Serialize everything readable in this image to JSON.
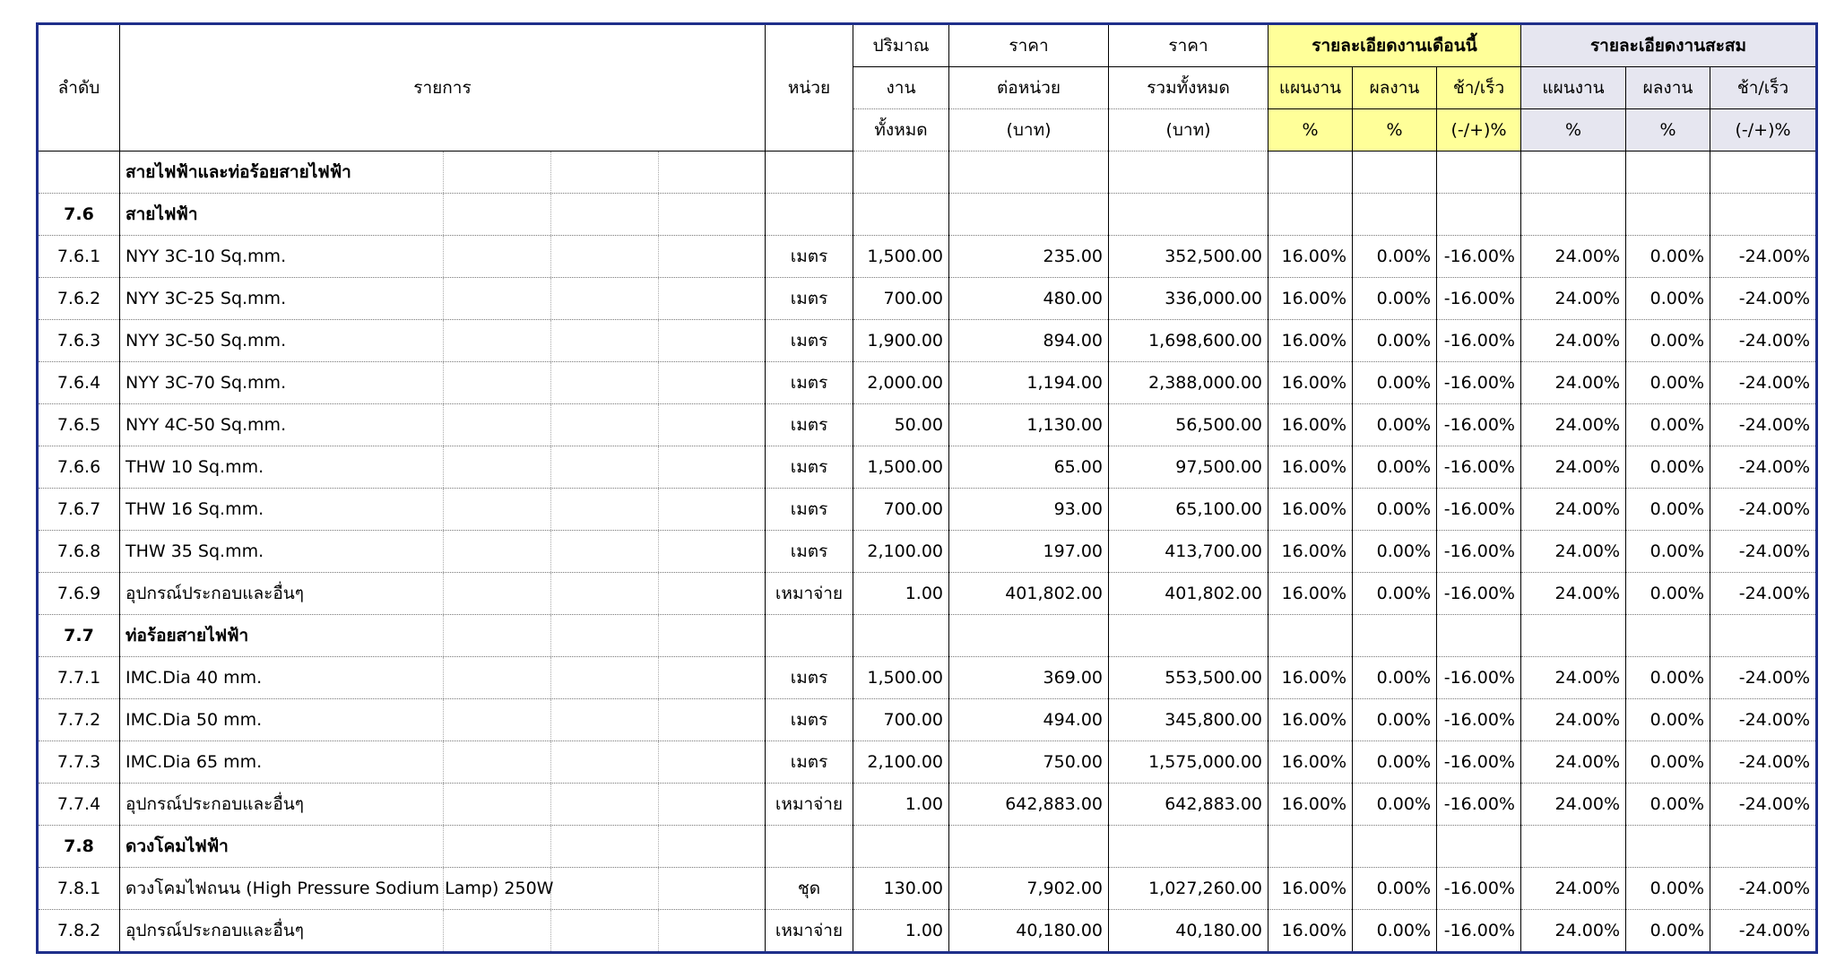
{
  "header": {
    "seq": "ลำดับ",
    "item": "รายการ",
    "unit": "หน่วย",
    "qty": [
      "ปริมาณ",
      "งาน",
      "ทั้งหมด"
    ],
    "unit_price": [
      "ราคา",
      "ต่อหน่วย",
      "(บาท)"
    ],
    "total_price": [
      "ราคา",
      "รวมทั้งหมด",
      "(บาท)"
    ],
    "this_month": "รายละเอียดงานเดือนนี้",
    "cumulative": "รายละเอียดงานสะสม",
    "plan": "แผนงาน",
    "result": "ผลงาน",
    "diff": "ช้า/เร็ว",
    "pct": "%",
    "diff_pct": "(-/+)%"
  },
  "rows": [
    {
      "type": "group",
      "seq": "",
      "name": "สายไฟฟ้าและท่อร้อยสายไฟฟ้า"
    },
    {
      "type": "group",
      "seq": "7.6",
      "name": "สายไฟฟ้า"
    },
    {
      "type": "item",
      "seq": "7.6.1",
      "name": "NYY 3C-10 Sq.mm.",
      "unit": "เมตร",
      "qty": "1,500.00",
      "price": "235.00",
      "total": "352,500.00",
      "m_plan": "16.00%",
      "m_res": "0.00%",
      "m_diff": "-16.00%",
      "c_plan": "24.00%",
      "c_res": "0.00%",
      "c_diff": "-24.00%"
    },
    {
      "type": "item",
      "seq": "7.6.2",
      "name": "NYY 3C-25 Sq.mm.",
      "unit": "เมตร",
      "qty": "700.00",
      "price": "480.00",
      "total": "336,000.00",
      "m_plan": "16.00%",
      "m_res": "0.00%",
      "m_diff": "-16.00%",
      "c_plan": "24.00%",
      "c_res": "0.00%",
      "c_diff": "-24.00%"
    },
    {
      "type": "item",
      "seq": "7.6.3",
      "name": "NYY 3C-50 Sq.mm.",
      "unit": "เมตร",
      "qty": "1,900.00",
      "price": "894.00",
      "total": "1,698,600.00",
      "m_plan": "16.00%",
      "m_res": "0.00%",
      "m_diff": "-16.00%",
      "c_plan": "24.00%",
      "c_res": "0.00%",
      "c_diff": "-24.00%"
    },
    {
      "type": "item",
      "seq": "7.6.4",
      "name": "NYY 3C-70 Sq.mm.",
      "unit": "เมตร",
      "qty": "2,000.00",
      "price": "1,194.00",
      "total": "2,388,000.00",
      "m_plan": "16.00%",
      "m_res": "0.00%",
      "m_diff": "-16.00%",
      "c_plan": "24.00%",
      "c_res": "0.00%",
      "c_diff": "-24.00%"
    },
    {
      "type": "item",
      "seq": "7.6.5",
      "name": "NYY 4C-50 Sq.mm.",
      "unit": "เมตร",
      "qty": "50.00",
      "price": "1,130.00",
      "total": "56,500.00",
      "m_plan": "16.00%",
      "m_res": "0.00%",
      "m_diff": "-16.00%",
      "c_plan": "24.00%",
      "c_res": "0.00%",
      "c_diff": "-24.00%"
    },
    {
      "type": "item",
      "seq": "7.6.6",
      "name": "THW 10 Sq.mm.",
      "unit": "เมตร",
      "qty": "1,500.00",
      "price": "65.00",
      "total": "97,500.00",
      "m_plan": "16.00%",
      "m_res": "0.00%",
      "m_diff": "-16.00%",
      "c_plan": "24.00%",
      "c_res": "0.00%",
      "c_diff": "-24.00%"
    },
    {
      "type": "item",
      "seq": "7.6.7",
      "name": "THW 16 Sq.mm.",
      "unit": "เมตร",
      "qty": "700.00",
      "price": "93.00",
      "total": "65,100.00",
      "m_plan": "16.00%",
      "m_res": "0.00%",
      "m_diff": "-16.00%",
      "c_plan": "24.00%",
      "c_res": "0.00%",
      "c_diff": "-24.00%"
    },
    {
      "type": "item",
      "seq": "7.6.8",
      "name": "THW 35 Sq.mm.",
      "unit": "เมตร",
      "qty": "2,100.00",
      "price": "197.00",
      "total": "413,700.00",
      "m_plan": "16.00%",
      "m_res": "0.00%",
      "m_diff": "-16.00%",
      "c_plan": "24.00%",
      "c_res": "0.00%",
      "c_diff": "-24.00%"
    },
    {
      "type": "item",
      "seq": "7.6.9",
      "name": "อุปกรณ์ประกอบและอื่นๆ",
      "unit": "เหมาจ่าย",
      "qty": "1.00",
      "price": "401,802.00",
      "total": "401,802.00",
      "m_plan": "16.00%",
      "m_res": "0.00%",
      "m_diff": "-16.00%",
      "c_plan": "24.00%",
      "c_res": "0.00%",
      "c_diff": "-24.00%"
    },
    {
      "type": "group",
      "seq": "7.7",
      "name": "ท่อร้อยสายไฟฟ้า"
    },
    {
      "type": "item",
      "seq": "7.7.1",
      "name": "IMC.Dia 40 mm.",
      "unit": "เมตร",
      "qty": "1,500.00",
      "price": "369.00",
      "total": "553,500.00",
      "m_plan": "16.00%",
      "m_res": "0.00%",
      "m_diff": "-16.00%",
      "c_plan": "24.00%",
      "c_res": "0.00%",
      "c_diff": "-24.00%"
    },
    {
      "type": "item",
      "seq": "7.7.2",
      "name": "IMC.Dia 50 mm.",
      "unit": "เมตร",
      "qty": "700.00",
      "price": "494.00",
      "total": "345,800.00",
      "m_plan": "16.00%",
      "m_res": "0.00%",
      "m_diff": "-16.00%",
      "c_plan": "24.00%",
      "c_res": "0.00%",
      "c_diff": "-24.00%"
    },
    {
      "type": "item",
      "seq": "7.7.3",
      "name": "IMC.Dia 65 mm.",
      "unit": "เมตร",
      "qty": "2,100.00",
      "price": "750.00",
      "total": "1,575,000.00",
      "m_plan": "16.00%",
      "m_res": "0.00%",
      "m_diff": "-16.00%",
      "c_plan": "24.00%",
      "c_res": "0.00%",
      "c_diff": "-24.00%"
    },
    {
      "type": "item",
      "seq": "7.7.4",
      "name": "อุปกรณ์ประกอบและอื่นๆ",
      "unit": "เหมาจ่าย",
      "qty": "1.00",
      "price": "642,883.00",
      "total": "642,883.00",
      "m_plan": "16.00%",
      "m_res": "0.00%",
      "m_diff": "-16.00%",
      "c_plan": "24.00%",
      "c_res": "0.00%",
      "c_diff": "-24.00%"
    },
    {
      "type": "group",
      "seq": "7.8",
      "name": "ดวงโคมไฟฟ้า"
    },
    {
      "type": "item",
      "seq": "7.8.1",
      "name": "ดวงโคมไฟถนน (High Pressure Sodium Lamp) 250W",
      "unit": "ชุด",
      "qty": "130.00",
      "price": "7,902.00",
      "total": "1,027,260.00",
      "m_plan": "16.00%",
      "m_res": "0.00%",
      "m_diff": "-16.00%",
      "c_plan": "24.00%",
      "c_res": "0.00%",
      "c_diff": "-24.00%"
    },
    {
      "type": "item",
      "seq": "7.8.2",
      "name": "อุปกรณ์ประกอบและอื่นๆ",
      "unit": "เหมาจ่าย",
      "qty": "1.00",
      "price": "40,180.00",
      "total": "40,180.00",
      "m_plan": "16.00%",
      "m_res": "0.00%",
      "m_diff": "-16.00%",
      "c_plan": "24.00%",
      "c_res": "0.00%",
      "c_diff": "-24.00%"
    }
  ]
}
